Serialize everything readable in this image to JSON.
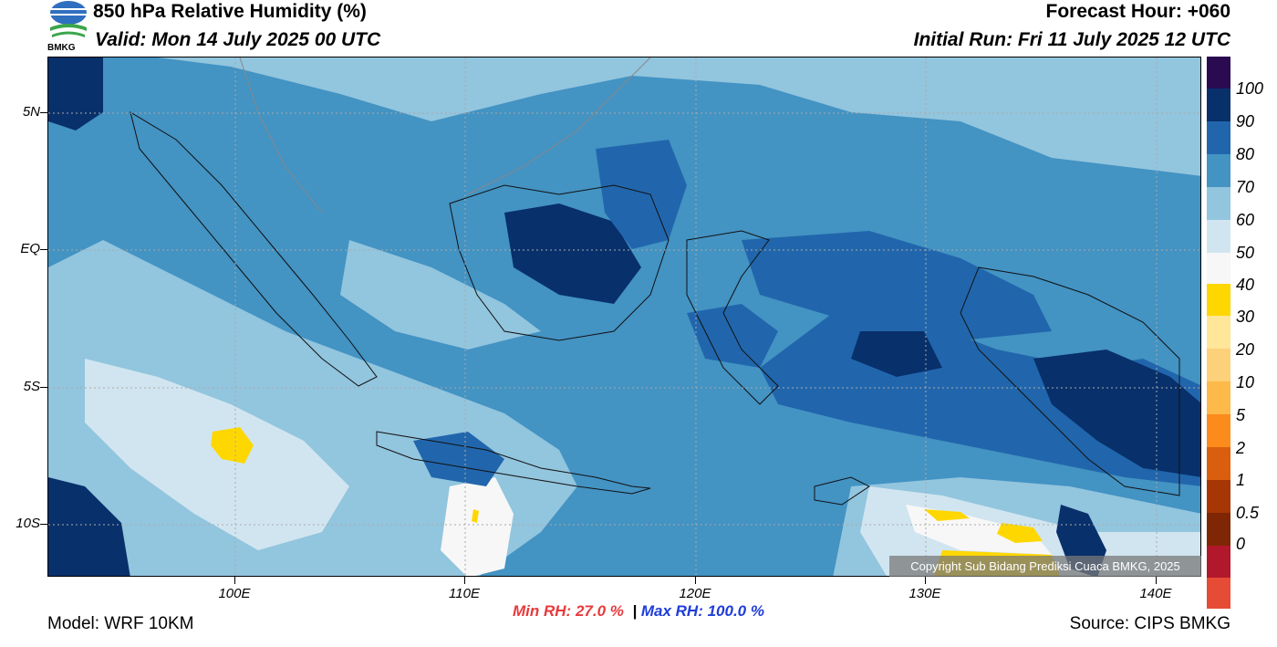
{
  "header": {
    "title": "850 hPa Relative Humidity (%)",
    "valid": "Valid: Mon 14 July 2025 00 UTC",
    "forecast_hour": "Forecast Hour: +060",
    "initial_run": "Initial Run: Fri 11 July 2025 12 UTC",
    "logo_text": "BMKG"
  },
  "map": {
    "lat_labels": [
      "5N",
      "EQ",
      "5S",
      "10S"
    ],
    "lon_labels": [
      "100E",
      "110E",
      "120E",
      "130E",
      "140E"
    ],
    "copyright": "Copyright Sub Bidang Prediksi Cuaca BMKG, 2025"
  },
  "colorbar": {
    "labels": [
      "100",
      "90",
      "80",
      "70",
      "60",
      "50",
      "40",
      "30",
      "20",
      "10",
      "5",
      "2",
      "1",
      "0.5",
      "0"
    ],
    "colors": [
      "#2a0a50",
      "#08306b",
      "#2166ac",
      "#4393c3",
      "#92c5de",
      "#d1e5f0",
      "#f7f7f7",
      "#ffd700",
      "#ffe699",
      "#fdd07a",
      "#fdb94a",
      "#fb8c1c",
      "#d95f0e",
      "#a63603",
      "#7f2704",
      "#b2182b",
      "#e64b35"
    ]
  },
  "stats": {
    "min_rh": "Min RH:  27.0 %",
    "separator": "|",
    "max_rh": "Max RH: 100.0 %"
  },
  "footer": {
    "model": "Model: WRF 10KM",
    "source": "Source: CIPS BMKG"
  }
}
